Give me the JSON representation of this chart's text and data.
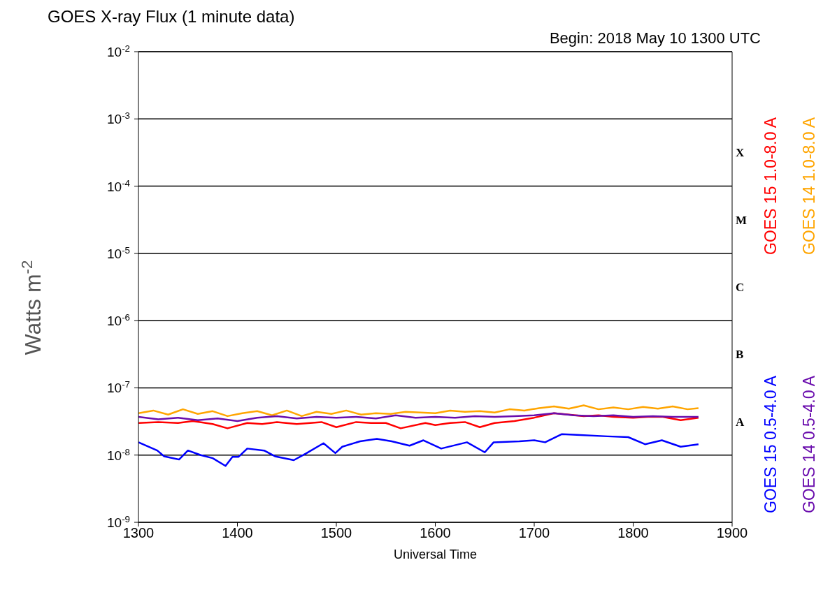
{
  "chart_data": {
    "type": "line",
    "title": "GOES X-ray Flux (1 minute data)",
    "subtitle": "Begin: 2018 May 10 1300 UTC",
    "xlabel": "Universal Time",
    "ylabel": "Watts m$^{-2}$",
    "log": "y",
    "grid": "y",
    "legend": "right",
    "marker": "none",
    "line_style": "solid",
    "xlim": [
      1300,
      1900
    ],
    "xticks": [
      1300,
      1400,
      1500,
      1600,
      1700,
      1800,
      1900
    ],
    "ylim": [
      1e-09,
      0.01
    ],
    "yticks": [
      {
        "value": 1e-09,
        "label": "10$^{-9}$"
      },
      {
        "value": 1e-08,
        "label": "10$^{-8}$"
      },
      {
        "value": 1e-07,
        "label": "10$^{-7}$"
      },
      {
        "value": 1e-06,
        "label": "10$^{-6}$"
      },
      {
        "value": 1e-05,
        "label": "10$^{-5}$"
      },
      {
        "value": 0.0001,
        "label": "10$^{-4}$"
      },
      {
        "value": 0.001,
        "label": "10$^{-3}$"
      },
      {
        "value": 0.01,
        "label": "10$^{-2}$"
      }
    ],
    "annotations": [
      "X",
      "M",
      "C",
      "B",
      "A"
    ],
    "series": [
      {
        "name": "GOES 15 1.0-8.0 A",
        "color": "#ff0000",
        "x": [
          1300,
          1320,
          1340,
          1355,
          1375,
          1390,
          1410,
          1425,
          1440,
          1460,
          1485,
          1500,
          1520,
          1535,
          1550,
          1565,
          1590,
          1600,
          1615,
          1630,
          1645,
          1660,
          1680,
          1700,
          1720,
          1735,
          1750,
          1765,
          1780,
          1800,
          1815,
          1830,
          1848,
          1866
        ],
        "values": [
          3e-08,
          3.1e-08,
          3e-08,
          3.2e-08,
          2.9e-08,
          2.5e-08,
          3e-08,
          2.9e-08,
          3.1e-08,
          2.9e-08,
          3.1e-08,
          2.6e-08,
          3.1e-08,
          3e-08,
          3e-08,
          2.5e-08,
          3e-08,
          2.8e-08,
          3e-08,
          3.1e-08,
          2.6e-08,
          3e-08,
          3.2e-08,
          3.6e-08,
          4.2e-08,
          4e-08,
          3.8e-08,
          3.9e-08,
          3.7e-08,
          3.6e-08,
          3.7e-08,
          3.7e-08,
          3.3e-08,
          3.6e-08
        ]
      },
      {
        "name": "GOES 14 1.0-8.0 A",
        "color": "#ffa500",
        "x": [
          1300,
          1315,
          1330,
          1345,
          1360,
          1375,
          1390,
          1405,
          1420,
          1435,
          1450,
          1465,
          1480,
          1495,
          1510,
          1525,
          1540,
          1555,
          1570,
          1585,
          1600,
          1615,
          1630,
          1645,
          1660,
          1675,
          1690,
          1705,
          1720,
          1735,
          1750,
          1765,
          1780,
          1795,
          1810,
          1825,
          1840,
          1855,
          1866
        ],
        "values": [
          4.2e-08,
          4.6e-08,
          4e-08,
          4.8e-08,
          4.1e-08,
          4.5e-08,
          3.8e-08,
          4.2e-08,
          4.5e-08,
          3.9e-08,
          4.6e-08,
          3.8e-08,
          4.4e-08,
          4.1e-08,
          4.6e-08,
          4e-08,
          4.2e-08,
          4.1e-08,
          4.4e-08,
          4.3e-08,
          4.2e-08,
          4.6e-08,
          4.4e-08,
          4.5e-08,
          4.3e-08,
          4.8e-08,
          4.6e-08,
          5e-08,
          5.3e-08,
          4.9e-08,
          5.5e-08,
          4.8e-08,
          5.1e-08,
          4.8e-08,
          5.2e-08,
          4.9e-08,
          5.3e-08,
          4.8e-08,
          5e-08
        ]
      },
      {
        "name": "GOES 15 0.5-4.0 A",
        "color": "#0000ff",
        "x": [
          1300,
          1319,
          1326,
          1341,
          1350,
          1363,
          1375,
          1388,
          1395,
          1401,
          1410,
          1427,
          1438,
          1457,
          1470,
          1487,
          1499,
          1506,
          1524,
          1541,
          1556,
          1574,
          1588,
          1606,
          1632,
          1650,
          1659,
          1685,
          1700,
          1711,
          1728,
          1743,
          1774,
          1795,
          1812,
          1829,
          1848,
          1866
        ],
        "values": [
          1.55e-08,
          1.17e-08,
          9.6e-09,
          8.6e-09,
          1.17e-08,
          1e-08,
          9e-09,
          6.9e-09,
          9.4e-09,
          9.4e-09,
          1.25e-08,
          1.17e-08,
          9.6e-09,
          8.4e-09,
          1.07e-08,
          1.5e-08,
          1.07e-08,
          1.33e-08,
          1.6e-08,
          1.74e-08,
          1.6e-08,
          1.38e-08,
          1.66e-08,
          1.25e-08,
          1.55e-08,
          1.1e-08,
          1.55e-08,
          1.6e-08,
          1.66e-08,
          1.55e-08,
          2.05e-08,
          2e-08,
          1.9e-08,
          1.85e-08,
          1.45e-08,
          1.66e-08,
          1.33e-08,
          1.45e-08
        ]
      },
      {
        "name": "GOES 14 0.5-4.0 A",
        "color": "#6a0dad",
        "x": [
          1300,
          1320,
          1340,
          1360,
          1380,
          1400,
          1420,
          1440,
          1460,
          1480,
          1500,
          1520,
          1540,
          1560,
          1580,
          1600,
          1620,
          1640,
          1660,
          1680,
          1700,
          1720,
          1740,
          1760,
          1780,
          1800,
          1820,
          1840,
          1866
        ],
        "values": [
          3.7e-08,
          3.4e-08,
          3.6e-08,
          3.3e-08,
          3.5e-08,
          3.2e-08,
          3.6e-08,
          3.8e-08,
          3.5e-08,
          3.7e-08,
          3.6e-08,
          3.7e-08,
          3.5e-08,
          3.9e-08,
          3.6e-08,
          3.7e-08,
          3.6e-08,
          3.8e-08,
          3.7e-08,
          3.8e-08,
          3.9e-08,
          4.2e-08,
          3.9e-08,
          3.8e-08,
          3.9e-08,
          3.7e-08,
          3.8e-08,
          3.7e-08,
          3.7e-08
        ]
      }
    ]
  }
}
